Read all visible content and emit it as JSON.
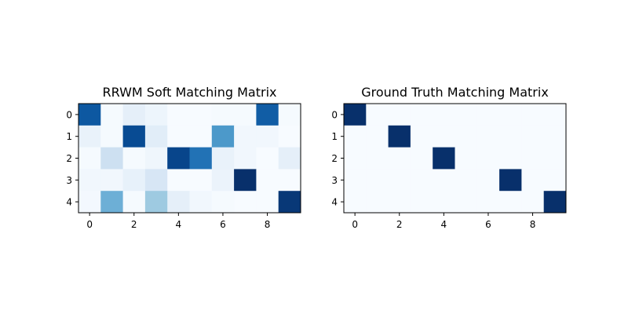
{
  "chart_data": [
    {
      "type": "heatmap",
      "title": "RRWM Soft Matching Matrix",
      "colormap": "Blues",
      "rows": 5,
      "cols": 10,
      "xticks": [
        0,
        2,
        4,
        6,
        8
      ],
      "yticks": [
        0,
        1,
        2,
        3,
        4
      ],
      "xlim": [
        -0.5,
        9.5
      ],
      "ylim": [
        4.5,
        -0.5
      ],
      "values": [
        [
          0.85,
          0.02,
          0.1,
          0.06,
          0.01,
          0.01,
          0.02,
          0.02,
          0.83,
          0.02
        ],
        [
          0.08,
          0.02,
          0.9,
          0.12,
          0.01,
          0.01,
          0.6,
          0.04,
          0.04,
          0.01
        ],
        [
          0.02,
          0.22,
          0.02,
          0.05,
          0.92,
          0.75,
          0.08,
          0.04,
          0.01,
          0.1
        ],
        [
          0.04,
          0.04,
          0.09,
          0.17,
          0.01,
          0.01,
          0.07,
          1.0,
          0.01,
          0.01
        ],
        [
          0.03,
          0.5,
          0.02,
          0.38,
          0.1,
          0.04,
          0.02,
          0.01,
          0.01,
          0.97
        ]
      ]
    },
    {
      "type": "heatmap",
      "title": "Ground Truth Matching Matrix",
      "colormap": "Blues",
      "rows": 5,
      "cols": 10,
      "xticks": [
        0,
        2,
        4,
        6,
        8
      ],
      "yticks": [
        0,
        1,
        2,
        3,
        4
      ],
      "xlim": [
        -0.5,
        9.5
      ],
      "ylim": [
        4.5,
        -0.5
      ],
      "values": [
        [
          1,
          0,
          0,
          0,
          0,
          0,
          0,
          0,
          0,
          0
        ],
        [
          0,
          0,
          1,
          0,
          0,
          0,
          0,
          0,
          0,
          0
        ],
        [
          0,
          0,
          0,
          0,
          1,
          0,
          0,
          0,
          0,
          0
        ],
        [
          0,
          0,
          0,
          0,
          0,
          0,
          0,
          1,
          0,
          0
        ],
        [
          0,
          0,
          0,
          0,
          0,
          0,
          0,
          0,
          0,
          1
        ]
      ]
    }
  ]
}
